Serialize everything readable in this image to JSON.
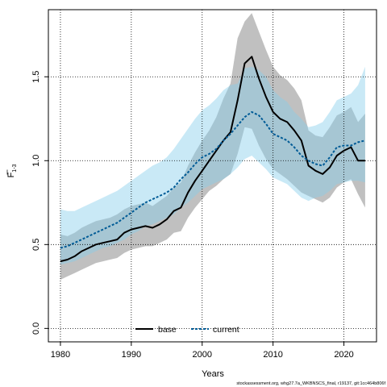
{
  "chart_data": {
    "type": "line",
    "xlabel": "Years",
    "ylabel": "F",
    "ylabel_sub": "1-3",
    "xlim": [
      1978.3,
      2024.6
    ],
    "ylim": [
      -0.08,
      1.9
    ],
    "x_ticks": [
      1980,
      1990,
      2000,
      2010,
      2020
    ],
    "y_ticks": [
      0.0,
      0.5,
      1.0,
      1.5
    ],
    "x_tick_labels": [
      "1980",
      "1990",
      "2000",
      "2010",
      "2020"
    ],
    "y_tick_labels": [
      "0.0",
      "0.5",
      "1.0",
      "1.5"
    ],
    "grid": true,
    "legend_position": "bottom",
    "x": [
      1980,
      1981,
      1982,
      1983,
      1984,
      1985,
      1986,
      1987,
      1988,
      1989,
      1990,
      1991,
      1992,
      1993,
      1994,
      1995,
      1996,
      1997,
      1998,
      1999,
      2000,
      2001,
      2002,
      2003,
      2004,
      2005,
      2006,
      2007,
      2008,
      2009,
      2010,
      2011,
      2012,
      2013,
      2014,
      2015,
      2016,
      2017,
      2018,
      2019,
      2020,
      2021,
      2022,
      2023
    ],
    "series": [
      {
        "name": "base",
        "color": "#000000",
        "line_style": "solid",
        "band_color": "#8c8c8c",
        "values": [
          0.4,
          0.41,
          0.43,
          0.46,
          0.48,
          0.5,
          0.51,
          0.52,
          0.53,
          0.57,
          0.59,
          0.6,
          0.61,
          0.6,
          0.62,
          0.65,
          0.7,
          0.72,
          0.81,
          0.88,
          0.94,
          1.0,
          1.06,
          1.12,
          1.17,
          1.36,
          1.58,
          1.62,
          1.49,
          1.38,
          1.29,
          1.25,
          1.23,
          1.18,
          1.12,
          0.97,
          0.94,
          0.92,
          0.96,
          1.03,
          1.06,
          1.08,
          1.0,
          1.0
        ],
        "lower": [
          0.29,
          0.31,
          0.33,
          0.35,
          0.37,
          0.39,
          0.4,
          0.41,
          0.42,
          0.45,
          0.47,
          0.48,
          0.49,
          0.49,
          0.51,
          0.53,
          0.57,
          0.58,
          0.66,
          0.72,
          0.77,
          0.82,
          0.85,
          0.89,
          0.92,
          1.04,
          1.2,
          1.19,
          1.09,
          1.01,
          0.95,
          0.92,
          0.89,
          0.85,
          0.81,
          0.79,
          0.77,
          0.75,
          0.78,
          0.84,
          0.87,
          0.89,
          0.8,
          0.72
        ],
        "upper": [
          0.56,
          0.55,
          0.57,
          0.6,
          0.62,
          0.64,
          0.65,
          0.66,
          0.68,
          0.71,
          0.73,
          0.74,
          0.75,
          0.73,
          0.76,
          0.79,
          0.84,
          0.87,
          0.97,
          1.05,
          1.12,
          1.18,
          1.26,
          1.37,
          1.46,
          1.73,
          1.83,
          1.88,
          1.77,
          1.66,
          1.56,
          1.51,
          1.48,
          1.43,
          1.36,
          1.18,
          1.15,
          1.14,
          1.2,
          1.27,
          1.29,
          1.32,
          1.23,
          1.28
        ]
      },
      {
        "name": "current",
        "color": "#005b96",
        "line_style": "dashed",
        "band_color": "#87ceeb",
        "values": [
          0.48,
          0.49,
          0.51,
          0.53,
          0.55,
          0.57,
          0.59,
          0.61,
          0.63,
          0.66,
          0.69,
          0.72,
          0.75,
          0.77,
          0.79,
          0.81,
          0.84,
          0.89,
          0.93,
          0.98,
          1.02,
          1.04,
          1.07,
          1.12,
          1.16,
          1.21,
          1.26,
          1.29,
          1.27,
          1.22,
          1.16,
          1.14,
          1.12,
          1.08,
          1.03,
          1.0,
          0.98,
          0.97,
          1.02,
          1.08,
          1.09,
          1.09,
          1.11,
          1.12
        ],
        "lower": [
          0.38,
          0.39,
          0.4,
          0.42,
          0.44,
          0.46,
          0.48,
          0.49,
          0.51,
          0.53,
          0.56,
          0.58,
          0.61,
          0.62,
          0.64,
          0.66,
          0.68,
          0.72,
          0.75,
          0.79,
          0.83,
          0.85,
          0.87,
          0.89,
          0.92,
          0.96,
          1.01,
          1.03,
          0.99,
          0.95,
          0.9,
          0.88,
          0.86,
          0.82,
          0.78,
          0.76,
          0.78,
          0.79,
          0.82,
          0.86,
          0.87,
          0.88,
          0.88,
          0.87
        ],
        "upper": [
          0.71,
          0.7,
          0.7,
          0.72,
          0.74,
          0.76,
          0.78,
          0.8,
          0.82,
          0.85,
          0.88,
          0.91,
          0.94,
          0.97,
          0.99,
          1.02,
          1.07,
          1.13,
          1.19,
          1.25,
          1.3,
          1.33,
          1.37,
          1.42,
          1.45,
          1.46,
          1.55,
          1.56,
          1.54,
          1.5,
          1.42,
          1.38,
          1.35,
          1.29,
          1.25,
          1.2,
          1.21,
          1.23,
          1.29,
          1.36,
          1.38,
          1.4,
          1.45,
          1.56
        ]
      }
    ]
  },
  "footer_note": "stockassessment.org, whg27.7a_WKBNSCS_final, r19137, git:1cc464b806f"
}
